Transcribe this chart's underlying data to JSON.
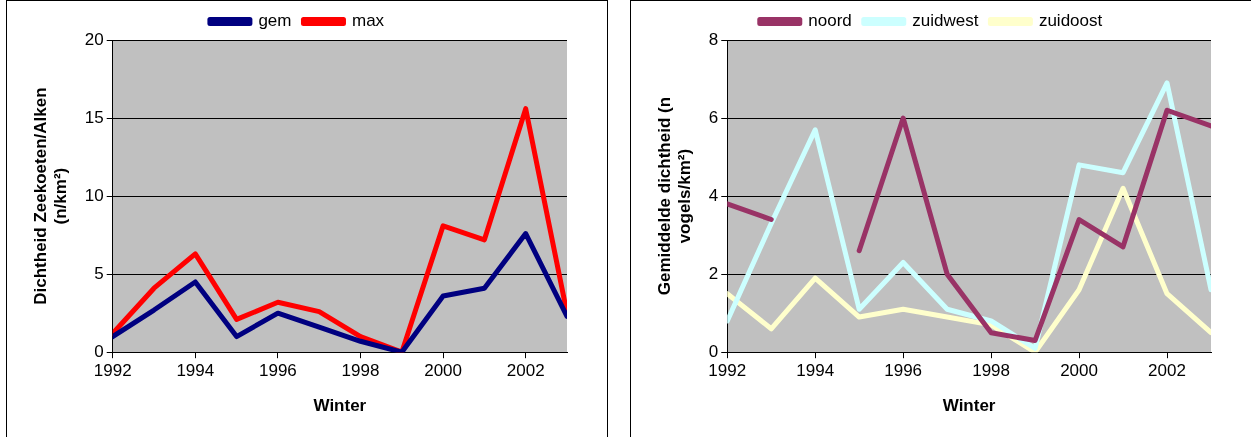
{
  "chart_data": [
    {
      "type": "line",
      "xlabel": "Winter",
      "ylabel": "Dichtheid Zeekoeten/Alken (n/km²)",
      "x": [
        1992,
        1993,
        1994,
        1995,
        1996,
        1997,
        1998,
        1999,
        2000,
        2001,
        2002,
        2003
      ],
      "series": [
        {
          "name": "gem",
          "color": "#000080",
          "values": [
            1.0,
            2.7,
            4.5,
            1.0,
            2.5,
            1.6,
            0.7,
            0,
            3.6,
            4.1,
            7.6,
            2.3
          ]
        },
        {
          "name": "max",
          "color": "#ff0000",
          "values": [
            1.2,
            4.1,
            6.3,
            2.1,
            3.2,
            2.6,
            1.0,
            0,
            8.1,
            7.2,
            15.6,
            2.5
          ]
        }
      ],
      "xlim": [
        1992,
        2003
      ],
      "xticks": [
        1992,
        1994,
        1996,
        1998,
        2000,
        2002
      ],
      "ylim": [
        0,
        20
      ],
      "yticks": [
        0,
        5,
        10,
        15,
        20
      ],
      "grid": "y",
      "legend": "top",
      "marker": "none",
      "line_style": "solid"
    },
    {
      "type": "line",
      "xlabel": "Winter",
      "ylabel": "Gemiddelde dichtheid (n vogels/km²)",
      "x": [
        1992,
        1993,
        1994,
        1995,
        1996,
        1997,
        1998,
        1999,
        2000,
        2001,
        2002,
        2003
      ],
      "series": [
        {
          "name": "noord",
          "color": "#993366",
          "values": [
            3.8,
            3.4,
            null,
            2.6,
            6.0,
            2.0,
            0.5,
            0.3,
            3.4,
            2.7,
            6.2,
            5.8
          ]
        },
        {
          "name": "zuidwest",
          "color": "#ccffff",
          "values": [
            0.8,
            3.3,
            5.7,
            1.1,
            2.3,
            1.1,
            0.8,
            0.1,
            4.8,
            4.6,
            6.9,
            1.6
          ]
        },
        {
          "name": "zuidoost",
          "color": "#ffffcc",
          "values": [
            1.5,
            0.6,
            1.9,
            0.9,
            1.1,
            0.9,
            0.7,
            0.0,
            1.6,
            4.2,
            1.5,
            0.5
          ]
        }
      ],
      "xlim": [
        1992,
        2003
      ],
      "xticks": [
        1992,
        1994,
        1996,
        1998,
        2000,
        2002
      ],
      "ylim": [
        0,
        8
      ],
      "yticks": [
        0,
        2,
        4,
        6,
        8
      ],
      "grid": "y",
      "legend": "top",
      "marker": "none",
      "line_style": "solid"
    }
  ]
}
